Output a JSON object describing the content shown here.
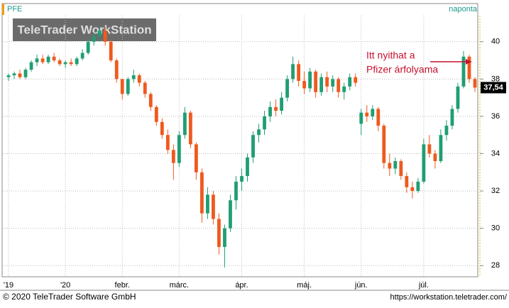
{
  "chart_data": {
    "type": "candlestick",
    "symbol": "PFE",
    "period": "naponta",
    "watermark": "TeleTrader WorkStation",
    "annotation": [
      "Itt nyithat a",
      "Pfizer árfolyama"
    ],
    "copyright": "© 2020 TeleTrader Software GmbH",
    "url": "https://workstation.teletrader.com/",
    "last_price": {
      "value": 37.54,
      "label": "37,54"
    },
    "up_color": "#1f9e74",
    "down_color": "#ee5a1e",
    "ylim": [
      27.4,
      41.4
    ],
    "yticks": [
      28,
      30,
      32,
      34,
      36,
      38,
      40
    ],
    "grid": true,
    "categories": [
      "'19",
      null,
      null,
      null,
      null,
      null,
      null,
      null,
      null,
      null,
      "'20",
      null,
      null,
      null,
      null,
      null,
      null,
      null,
      null,
      null,
      "febr.",
      null,
      null,
      null,
      null,
      null,
      null,
      null,
      null,
      null,
      "márc.",
      null,
      null,
      null,
      null,
      null,
      null,
      null,
      null,
      null,
      null,
      "ápr.",
      null,
      null,
      null,
      null,
      null,
      null,
      null,
      null,
      null,
      null,
      "máj.",
      null,
      null,
      null,
      null,
      null,
      null,
      null,
      null,
      null,
      "jún.",
      null,
      null,
      null,
      null,
      null,
      null,
      null,
      null,
      null,
      null,
      "júl.",
      null,
      null,
      null,
      null,
      null,
      null,
      null,
      null,
      null
    ],
    "candles": [
      [
        38.1,
        38.3,
        37.9,
        38.2
      ],
      [
        38.2,
        38.4,
        38.0,
        38.3
      ],
      [
        38.3,
        38.5,
        38.0,
        38.1
      ],
      [
        38.1,
        38.6,
        38.0,
        38.5
      ],
      [
        38.5,
        39.0,
        38.4,
        38.9
      ],
      [
        38.9,
        39.3,
        38.7,
        39.1
      ],
      [
        39.1,
        39.3,
        38.8,
        38.9
      ],
      [
        38.9,
        39.3,
        38.8,
        39.2
      ],
      [
        39.2,
        39.4,
        38.9,
        39.0
      ],
      [
        39.0,
        39.1,
        38.7,
        38.8
      ],
      [
        38.8,
        39.0,
        38.6,
        38.9
      ],
      [
        38.9,
        39.1,
        38.7,
        38.8
      ],
      [
        38.8,
        39.2,
        38.7,
        39.1
      ],
      [
        39.1,
        39.6,
        39.0,
        39.4
      ],
      [
        39.4,
        40.2,
        39.3,
        40.0
      ],
      [
        40.0,
        40.5,
        39.8,
        40.3
      ],
      [
        40.3,
        40.8,
        40.0,
        40.6
      ],
      [
        40.6,
        40.8,
        39.8,
        40.0
      ],
      [
        40.0,
        40.1,
        38.9,
        39.0
      ],
      [
        39.0,
        39.1,
        37.8,
        38.0
      ],
      [
        38.0,
        38.0,
        36.9,
        37.2
      ],
      [
        37.2,
        38.1,
        37.1,
        38.0
      ],
      [
        38.0,
        38.5,
        37.8,
        38.2
      ],
      [
        38.2,
        38.3,
        37.6,
        37.8
      ],
      [
        37.8,
        37.9,
        37.0,
        37.2
      ],
      [
        37.2,
        37.3,
        36.3,
        36.5
      ],
      [
        36.5,
        36.6,
        35.5,
        35.7
      ],
      [
        35.7,
        35.9,
        34.8,
        35.0
      ],
      [
        35.0,
        35.3,
        34.0,
        34.2
      ],
      [
        34.2,
        34.5,
        32.6,
        33.5
      ],
      [
        33.5,
        35.2,
        33.3,
        35.0
      ],
      [
        35.0,
        36.5,
        34.8,
        36.2
      ],
      [
        36.2,
        36.3,
        34.3,
        34.5
      ],
      [
        34.5,
        34.6,
        32.6,
        33.0
      ],
      [
        33.0,
        33.2,
        30.3,
        30.8
      ],
      [
        30.8,
        32.2,
        30.5,
        31.8
      ],
      [
        31.8,
        32.0,
        30.2,
        30.5
      ],
      [
        30.5,
        30.8,
        28.6,
        29.0
      ],
      [
        29.0,
        30.2,
        27.9,
        30.0
      ],
      [
        30.0,
        31.8,
        29.8,
        31.5
      ],
      [
        31.5,
        32.8,
        31.0,
        32.5
      ],
      [
        32.5,
        33.2,
        32.0,
        32.8
      ],
      [
        32.8,
        34.0,
        32.5,
        33.8
      ],
      [
        33.8,
        35.2,
        33.5,
        35.0
      ],
      [
        35.0,
        35.6,
        34.6,
        35.3
      ],
      [
        35.3,
        36.3,
        35.0,
        36.0
      ],
      [
        36.0,
        36.8,
        35.7,
        36.5
      ],
      [
        36.5,
        36.9,
        36.0,
        36.3
      ],
      [
        36.3,
        37.3,
        36.1,
        37.0
      ],
      [
        37.0,
        38.2,
        36.8,
        38.0
      ],
      [
        38.0,
        39.2,
        37.8,
        38.8
      ],
      [
        38.8,
        39.0,
        37.6,
        37.9
      ],
      [
        37.9,
        38.4,
        37.2,
        37.5
      ],
      [
        37.5,
        38.6,
        37.3,
        38.4
      ],
      [
        38.4,
        38.5,
        37.0,
        37.3
      ],
      [
        37.3,
        38.3,
        37.1,
        38.1
      ],
      [
        38.1,
        38.4,
        37.3,
        37.6
      ],
      [
        37.6,
        38.2,
        37.3,
        38.0
      ],
      [
        38.0,
        38.1,
        37.0,
        37.3
      ],
      [
        37.3,
        37.8,
        36.9,
        37.6
      ],
      [
        37.6,
        38.3,
        37.4,
        38.1
      ],
      [
        38.1,
        38.3,
        37.6,
        37.8
      ],
      [
        35.6,
        36.4,
        35.0,
        36.2
      ],
      [
        36.2,
        36.6,
        35.7,
        36.0
      ],
      [
        36.0,
        36.6,
        35.8,
        36.4
      ],
      [
        36.4,
        36.5,
        35.2,
        35.5
      ],
      [
        35.5,
        35.6,
        33.2,
        33.5
      ],
      [
        33.5,
        34.0,
        32.8,
        33.2
      ],
      [
        33.2,
        33.8,
        32.9,
        33.6
      ],
      [
        33.6,
        33.7,
        32.6,
        32.8
      ],
      [
        32.8,
        33.0,
        31.9,
        32.2
      ],
      [
        32.2,
        32.5,
        31.6,
        32.0
      ],
      [
        32.0,
        32.7,
        31.9,
        32.5
      ],
      [
        32.5,
        34.8,
        32.4,
        34.5
      ],
      [
        34.5,
        35.0,
        33.8,
        34.0
      ],
      [
        34.0,
        34.2,
        33.2,
        33.6
      ],
      [
        33.6,
        35.3,
        33.5,
        35.0
      ],
      [
        35.0,
        35.8,
        34.7,
        35.5
      ],
      [
        35.5,
        36.6,
        35.3,
        36.4
      ],
      [
        36.4,
        37.8,
        36.2,
        37.6
      ],
      [
        37.6,
        39.5,
        37.5,
        39.2
      ],
      [
        39.2,
        39.3,
        37.8,
        38.0
      ],
      [
        38.0,
        38.1,
        37.3,
        37.54
      ]
    ]
  }
}
